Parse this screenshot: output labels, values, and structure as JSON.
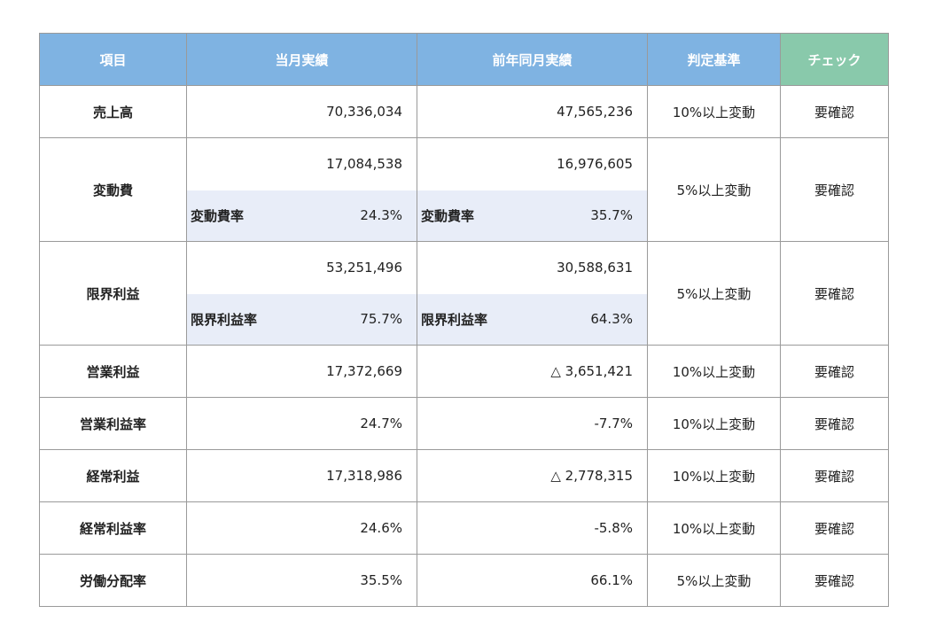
{
  "header": {
    "item": "項目",
    "current": "当月実績",
    "previous": "前年同月実績",
    "criteria": "判定基準",
    "check": "チェック"
  },
  "rows": {
    "sales": {
      "item": "売上高",
      "current": "70,336,034",
      "previous": "47,565,236",
      "criteria": "10%以上変動",
      "check": "要確認"
    },
    "variable_cost": {
      "item": "変動費",
      "current": "17,084,538",
      "previous": "16,976,605",
      "rate_label": "変動費率",
      "current_rate": "24.3%",
      "previous_rate": "35.7%",
      "criteria": "5%以上変動",
      "check": "要確認"
    },
    "marginal_profit": {
      "item": "限界利益",
      "current": "53,251,496",
      "previous": "30,588,631",
      "rate_label": "限界利益率",
      "current_rate": "75.7%",
      "previous_rate": "64.3%",
      "criteria": "5%以上変動",
      "check": "要確認"
    },
    "operating_profit": {
      "item": "営業利益",
      "current": "17,372,669",
      "previous": "△ 3,651,421",
      "criteria": "10%以上変動",
      "check": "要確認"
    },
    "operating_margin": {
      "item": "営業利益率",
      "current": "24.7%",
      "previous": "-7.7%",
      "criteria": "10%以上変動",
      "check": "要確認"
    },
    "ordinary_profit": {
      "item": "経常利益",
      "current": "17,318,986",
      "previous": "△ 2,778,315",
      "criteria": "10%以上変動",
      "check": "要確認"
    },
    "ordinary_margin": {
      "item": "経常利益率",
      "current": "24.6%",
      "previous": "-5.8%",
      "criteria": "10%以上変動",
      "check": "要確認"
    },
    "labor_share": {
      "item": "労働分配率",
      "current": "35.5%",
      "previous": "66.1%",
      "criteria": "5%以上変動",
      "check": "要確認"
    }
  },
  "colors": {
    "header_blue": "#7fb3e2",
    "header_green": "#89c9ab",
    "rate_bg": "#e8edf8",
    "border": "#9a9a9a"
  }
}
